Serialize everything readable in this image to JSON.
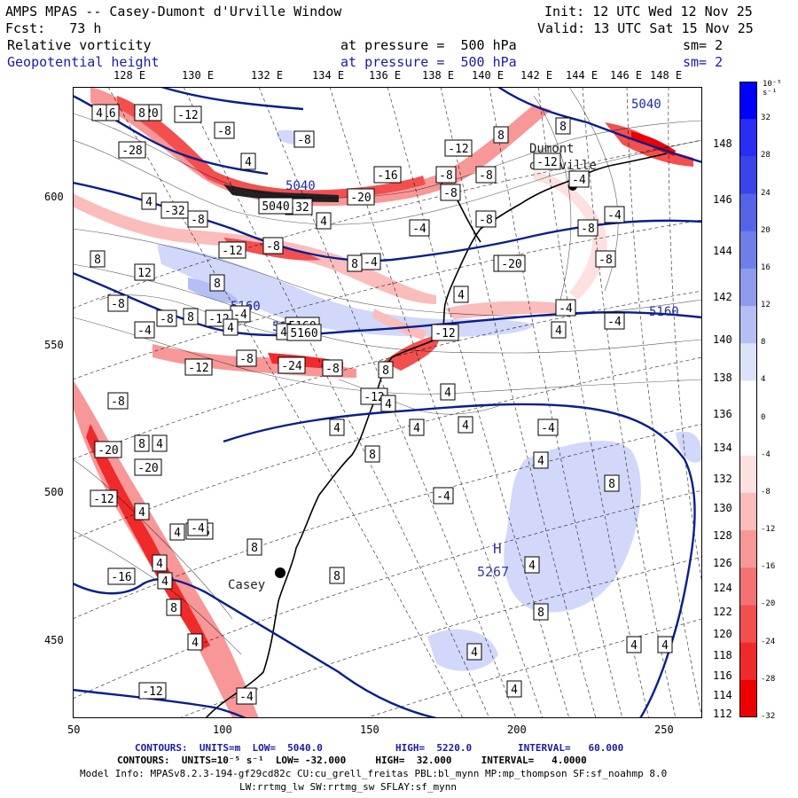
{
  "header": {
    "title": "AMPS MPAS -- Casey-Dumont d'Urville Window",
    "init": "Init: 12 UTC Wed 12 Nov 25",
    "fcst": "Fcst:   73 h",
    "valid": "Valid: 13 UTC Sat 15 Nov 25",
    "field1": "Relative vorticity",
    "field1_level": "at pressure =  500 hPa",
    "field1_sm": "sm= 2",
    "field2": "Geopotential height",
    "field2_level": "at pressure =  500 hPa",
    "field2_sm": "sm= 2"
  },
  "map": {
    "lon_labels_top": [
      "128 E",
      "130 E",
      "132 E",
      "134 E",
      "136 E",
      "138 E",
      "140 E",
      "142 E",
      "144 E",
      "146 E",
      "148 E"
    ],
    "lon_labels_right": [
      "148 E",
      "146 E",
      "144 E",
      "142 E",
      "140 E",
      "138 E",
      "136 E",
      "134 E",
      "132 E",
      "130 E",
      "128 E",
      "126 E",
      "124 E",
      "122 E",
      "120 E",
      "118 E",
      "116 E",
      "114 E",
      "112 E"
    ],
    "y_ticks": [
      "600",
      "550",
      "500",
      "450"
    ],
    "x_ticks": [
      "50",
      "100",
      "150",
      "200",
      "250"
    ],
    "stations": [
      {
        "name": "Dumont"
      },
      {
        "name": "d'Urville"
      },
      {
        "name": "Casey"
      }
    ],
    "height_labels": [
      "5040",
      "5040",
      "5160",
      "5160",
      "5160"
    ],
    "high_center": {
      "symbol": "H",
      "value": "5267"
    },
    "vort_labels": [
      "-16",
      "-20",
      "-12",
      "-8",
      "4",
      "-28",
      "-8",
      "-32",
      "-32",
      "5040",
      "-20",
      "4",
      "-8",
      "-12",
      "-8",
      "-4",
      "4",
      "-4",
      "-8",
      "-12",
      "8",
      "-8",
      "-16",
      "-8",
      "-8",
      "4",
      "-12",
      "-8",
      "-4",
      "-12",
      "-8",
      "-8",
      "-4",
      "8",
      "-20",
      "-4",
      "4",
      "-4",
      "8",
      "-8",
      "12",
      "8",
      "-4",
      "8",
      "5160",
      "-12",
      "8",
      "4",
      "5160",
      "4",
      "-8",
      "-4",
      "-8",
      "-12",
      "-8",
      "-24",
      "-12",
      "4",
      "8",
      "4",
      "4",
      "4",
      "4",
      "-4",
      "8",
      "-8",
      "8",
      "4",
      "-20",
      "-16",
      "4",
      "4",
      "4",
      "-4",
      "8",
      "-20",
      "-12",
      "4",
      "8",
      "-16",
      "4",
      "-12",
      "-4",
      "8",
      "8",
      "4",
      "8",
      "4",
      "4",
      "4",
      "4",
      "4",
      "-4",
      "4",
      "8"
    ]
  },
  "colorbar": {
    "unit": "10⁻⁵ s⁻¹",
    "labels": [
      "32",
      "28",
      "24",
      "20",
      "16",
      "12",
      "8",
      "4",
      "0",
      "-4",
      "-8",
      "-12",
      "-16",
      "-20",
      "-24",
      "-28",
      "-32"
    ],
    "colors": [
      "#0000ff",
      "#2a2ef5",
      "#3a44e8",
      "#5563e6",
      "#6f7ee8",
      "#8e9bec",
      "#b6bff4",
      "#dde2fb",
      "#ffffff",
      "#ffffff",
      "#fde0e0",
      "#fbbcbc",
      "#f89797",
      "#f57272",
      "#f34f4f",
      "#f02a2a",
      "#ee0000"
    ]
  },
  "footer": {
    "line1_a": "CONTOURS:  UNITS=m  LOW=  5040.0",
    "line1_b": "HIGH=  5220.0",
    "line1_c": "INTERVAL=   60.000",
    "line2": "CONTOURS:  UNITS=10⁻⁵ s⁻¹  LOW= -32.000     HIGH=  32.000     INTERVAL=   4.0000",
    "model_info": "Model Info: MPASv8.2.3-194-gf29cd82c CU:cu_grell_freitas PBL:bl_mynn MP:mp_thompson SF:sf_noahmp 8.0",
    "model_info2": "LW:rrtmg_lw SW:rrtmg_sw SFLAY:sf_mynn"
  }
}
